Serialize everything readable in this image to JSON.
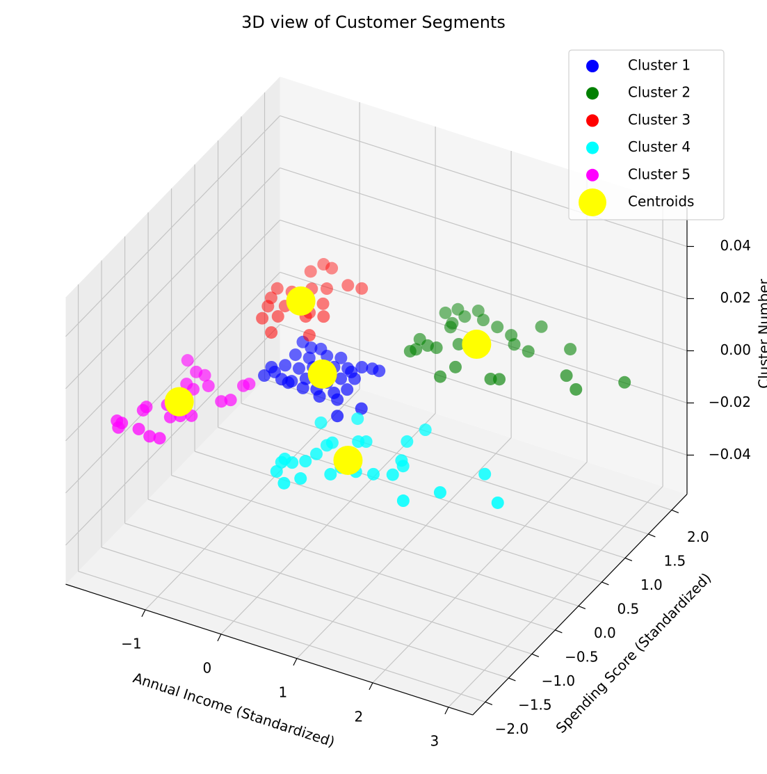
{
  "chart_data": {
    "type": "scatter3d",
    "title": "3D view of Customer Segments",
    "x_label": "Annual Income (Standardized)",
    "y_label": "Spending Score (Standardized)",
    "z_label": "Cluster Number",
    "xlim": [
      -2.05,
      3.32
    ],
    "ylim": [
      -2.27,
      2.33
    ],
    "zlim": [
      -0.055,
      0.055
    ],
    "xticks": [
      {
        "value": -1,
        "label": "−1"
      },
      0,
      1,
      2,
      3
    ],
    "yticks": [
      {
        "value": -2,
        "label": "−2.0"
      },
      {
        "value": -1.5,
        "label": "−1.5"
      },
      {
        "value": -1,
        "label": "−1.0"
      },
      {
        "value": -0.5,
        "label": "−0.5"
      },
      {
        "value": 0,
        "label": "0.0"
      },
      {
        "value": 0.5,
        "label": "0.5"
      },
      {
        "value": 1,
        "label": "1.0"
      },
      {
        "value": 1.5,
        "label": "1.5"
      },
      {
        "value": 2,
        "label": "2.0"
      }
    ],
    "zticks": [
      {
        "value": -0.04,
        "label": "−0.04"
      },
      {
        "value": -0.02,
        "label": "−0.02"
      },
      {
        "value": 0,
        "label": "0.00"
      },
      {
        "value": 0.02,
        "label": "0.02"
      },
      {
        "value": 0.04,
        "label": "0.04"
      }
    ],
    "grid": true,
    "legend": "upper right",
    "series": [
      {
        "name": "Cluster 1",
        "color": "blue",
        "x": [
          -0.63,
          -0.49,
          -0.38,
          -0.58,
          -0.41,
          -0.25,
          -0.09,
          -0.58,
          -0.41,
          -0.28,
          -0.07,
          0.08,
          0.21,
          0.33,
          0.42,
          -0.69,
          -0.62,
          -0.48,
          -0.36,
          -0.24,
          0.01,
          0.11,
          0.25,
          -0.38,
          -0.18,
          -0.03,
          0.18,
          0.28,
          0.07,
          0.28,
          0.61,
          0.44,
          0.15,
          -0.7
        ],
        "y": [
          0.51,
          0.46,
          0.49,
          0.27,
          0.29,
          0.41,
          0.45,
          0.05,
          0.07,
          0.16,
          0.27,
          0.32,
          0.41,
          0.44,
          0.44,
          -0.22,
          -0.11,
          -0.19,
          -0.17,
          -0.06,
          -0.01,
          0.12,
          0.19,
          -0.21,
          -0.22,
          -0.17,
          -0.14,
          -0.02,
          -0.27,
          -0.23,
          -0.25,
          -0.49,
          0.28,
          -0.05
        ],
        "z": [
          0,
          0,
          0,
          0,
          0,
          0,
          0,
          0,
          0,
          0,
          0,
          0,
          0,
          0,
          0,
          0,
          0,
          0,
          0,
          0,
          0,
          0,
          0,
          0,
          0,
          0,
          0,
          0,
          0,
          0,
          0,
          0,
          0,
          0
        ]
      },
      {
        "name": "Cluster 2",
        "color": "green",
        "x": [
          0.52,
          0.61,
          0.83,
          0.75,
          0.97,
          0.69,
          1.18,
          1.4,
          1.62,
          0.52,
          0.58,
          0.66,
          0.77,
          0.96,
          0.71,
          1.52,
          1.73,
          2.13,
          1.15,
          1.09,
          1.62,
          1.71,
          2.35,
          2.58,
          3.0,
          0.54
        ],
        "y": [
          1.7,
          1.82,
          1.9,
          1.74,
          1.78,
          1.57,
          1.74,
          1.68,
          1.97,
          1.15,
          0.97,
          1.09,
          1.1,
          1.27,
          1.5,
          1.55,
          1.51,
          1.76,
          0.89,
          0.66,
          0.88,
          0.92,
          1.32,
          1.15,
          1.51,
          0.91
        ],
        "z": [
          0,
          0,
          0,
          0,
          0,
          0,
          0,
          0,
          0,
          0,
          0,
          0,
          0,
          0,
          0,
          0,
          0,
          0,
          0,
          0,
          0,
          0,
          0,
          0,
          0,
          0
        ]
      },
      {
        "name": "Cluster 3",
        "color": "red",
        "x": [
          -1.18,
          -1.24,
          -1.06,
          -1.41,
          -1.23,
          -1.38,
          -0.73,
          -0.56,
          -0.91,
          -1.06,
          -1.33,
          -1.16,
          -0.8,
          -0.85,
          -1.27,
          -1.13,
          -0.85,
          -0.67,
          -1.04,
          -0.63
        ],
        "y": [
          1.85,
          1.67,
          1.83,
          1.23,
          1.25,
          1.05,
          1.64,
          1.66,
          1.48,
          1.4,
          0.9,
          0.99,
          1.22,
          1.01,
          0.68,
          0.79,
          0.93,
          1.02,
          0.5,
          0.65
        ],
        "z": [
          0,
          0,
          0,
          0,
          0,
          0,
          0,
          0,
          0,
          0,
          0,
          0,
          0,
          0,
          0,
          0,
          0,
          0,
          0,
          0
        ]
      },
      {
        "name": "Cluster 4",
        "color": "cyan",
        "x": [
          0.34,
          0.67,
          0.62,
          0.65,
          0.9,
          0.98,
          1.39,
          1.46,
          0.6,
          0.56,
          0.33,
          0.33,
          0.44,
          0.37,
          0.56,
          0.68,
          0.94,
          0.98,
          1.17,
          1.37,
          1.57,
          1.52,
          1.59,
          1.93,
          2.22,
          2.49,
          2.9,
          0.96
        ],
        "y": [
          -0.68,
          -0.43,
          -1.01,
          -0.94,
          -0.79,
          -0.75,
          -0.54,
          -0.26,
          -1.2,
          -1.37,
          -1.44,
          -1.51,
          -1.46,
          -1.68,
          -1.83,
          -1.67,
          -1.45,
          -1.29,
          -1.28,
          -1.23,
          -1.14,
          -0.87,
          -0.95,
          -1.5,
          -1.18,
          -0.66,
          -1.05,
          -1.12
        ],
        "z": [
          0,
          0,
          0,
          0,
          0,
          0,
          0,
          0,
          0,
          0,
          0,
          0,
          0,
          0,
          0,
          0,
          0,
          0,
          0,
          0,
          0,
          0,
          0,
          0,
          0,
          0,
          0,
          0
        ]
      },
      {
        "name": "Cluster 5",
        "color": "magenta",
        "x": [
          -1.61,
          -1.41,
          -1.29,
          -1.39,
          -1.27,
          -1.15,
          -0.8,
          -0.76,
          -0.87,
          -0.79,
          -1.57,
          -1.57,
          -1.23,
          -1.14,
          -1.03,
          -1.73,
          -1.66,
          -1.65,
          -1.43,
          -1.25,
          -1.13,
          -1.38
        ],
        "y": [
          -0.37,
          -0.51,
          -0.52,
          -0.75,
          -0.8,
          -0.67,
          -0.49,
          -0.43,
          -0.85,
          -0.78,
          -1.32,
          -1.39,
          -1.36,
          -1.29,
          -1.23,
          -1.69,
          -1.7,
          -1.79,
          -1.71,
          -1.77,
          -1.75,
          -1.18
        ],
        "z": [
          0,
          0,
          0,
          0,
          0,
          0,
          0,
          0,
          0,
          0,
          0,
          0,
          0,
          0,
          0,
          0,
          0,
          0,
          0,
          0,
          0,
          0
        ]
      },
      {
        "name": "Centroids",
        "color": "yellow",
        "x": [
          -0.12,
          1.14,
          -1.05,
          0.98,
          -1.29
        ],
        "y": [
          0.1,
          1.36,
          1.15,
          -1.14,
          -1.07
        ],
        "z": [
          0,
          0,
          0,
          0,
          0
        ]
      }
    ]
  }
}
